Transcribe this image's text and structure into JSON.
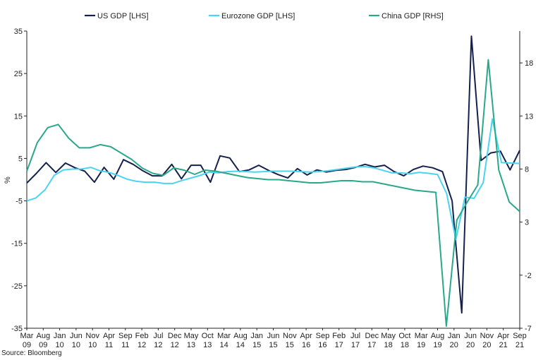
{
  "chart_data": {
    "type": "line",
    "ylabel_left": "%",
    "source": "Source: Bloomberg",
    "y_left": {
      "min": -35,
      "max": 35,
      "ticks": [
        35,
        25,
        15,
        5,
        -5,
        -15,
        -25,
        -35
      ]
    },
    "y_right": {
      "min": -7,
      "max": 21,
      "ticks": [
        18,
        13,
        8,
        3,
        -2,
        -7
      ]
    },
    "x_labels": [
      [
        "Mar",
        "09"
      ],
      [
        "Aug",
        "09"
      ],
      [
        "Jan",
        "10"
      ],
      [
        "Jun",
        "10"
      ],
      [
        "Nov",
        "10"
      ],
      [
        "Apr",
        "11"
      ],
      [
        "Sep",
        "11"
      ],
      [
        "Feb",
        "12"
      ],
      [
        "Jul",
        "12"
      ],
      [
        "Dec",
        "12"
      ],
      [
        "May",
        "13"
      ],
      [
        "Oct",
        "13"
      ],
      [
        "Mar",
        "14"
      ],
      [
        "Aug",
        "14"
      ],
      [
        "Jan",
        "15"
      ],
      [
        "Jun",
        "15"
      ],
      [
        "Nov",
        "15"
      ],
      [
        "Apr",
        "16"
      ],
      [
        "Sep",
        "16"
      ],
      [
        "Feb",
        "17"
      ],
      [
        "Jul",
        "17"
      ],
      [
        "Dec",
        "17"
      ],
      [
        "May",
        "18"
      ],
      [
        "Oct",
        "18"
      ],
      [
        "Mar",
        "19"
      ],
      [
        "Aug",
        "19"
      ],
      [
        "Jan",
        "20"
      ],
      [
        "Jun",
        "20"
      ],
      [
        "Nov",
        "20"
      ],
      [
        "Apr",
        "21"
      ],
      [
        "Sep",
        "21"
      ]
    ],
    "series": [
      {
        "name": "US GDP [LHS]",
        "axis": "left",
        "color": "#14214d",
        "values": [
          -0.8,
          1.5,
          4.0,
          1.7,
          3.9,
          2.8,
          2.0,
          -0.6,
          2.9,
          0.1,
          4.7,
          3.6,
          2.1,
          0.9,
          0.9,
          3.6,
          0.2,
          3.4,
          3.4,
          -0.6,
          5.6,
          5.1,
          1.9,
          2.3,
          3.4,
          2.2,
          1.2,
          0.4,
          2.6,
          1.1,
          2.3,
          1.8,
          2.2,
          2.4,
          2.9,
          3.6,
          3.0,
          3.4,
          1.9,
          0.9,
          2.4,
          3.2,
          2.8,
          1.9,
          -5.0,
          -31.4,
          33.8,
          4.5,
          6.3,
          6.7,
          2.3,
          6.9
        ]
      },
      {
        "name": "Eurozone GDP [LHS]",
        "axis": "left",
        "color": "#4ad4f0",
        "values": [
          -5.0,
          -4.3,
          -2.4,
          1.0,
          2.3,
          2.5,
          2.5,
          2.9,
          2.1,
          1.7,
          1.0,
          0.1,
          -0.4,
          -0.6,
          -0.6,
          -0.9,
          -0.9,
          -0.2,
          0.4,
          1.0,
          1.8,
          1.6,
          1.9,
          2.0,
          1.9,
          1.8,
          1.9,
          2.0,
          2.0,
          2.0,
          1.9,
          1.8,
          1.9,
          2.1,
          2.4,
          2.7,
          3.0,
          3.1,
          2.8,
          2.2,
          1.6,
          1.6,
          1.4,
          1.7,
          1.5,
          1.2,
          -3.3,
          -14.1,
          -4.1,
          -4.4,
          -0.7,
          14.3,
          4.0,
          3.9,
          3.8
        ]
      },
      {
        "name": "China GDP [RHS]",
        "axis": "right",
        "color": "#2aa88a",
        "values": [
          7.8,
          10.5,
          11.9,
          12.2,
          10.9,
          10.0,
          10.0,
          10.3,
          10.1,
          9.5,
          8.9,
          8.1,
          7.6,
          7.4,
          8.1,
          7.9,
          7.5,
          7.9,
          7.8,
          7.6,
          7.4,
          7.2,
          7.1,
          7.0,
          7.0,
          6.9,
          6.8,
          6.7,
          6.7,
          6.8,
          6.9,
          6.9,
          6.8,
          6.8,
          6.6,
          6.4,
          6.2,
          6.0,
          5.9,
          5.8,
          -6.8,
          3.2,
          4.9,
          6.5,
          18.3,
          7.9,
          4.9,
          4.0
        ]
      }
    ]
  }
}
